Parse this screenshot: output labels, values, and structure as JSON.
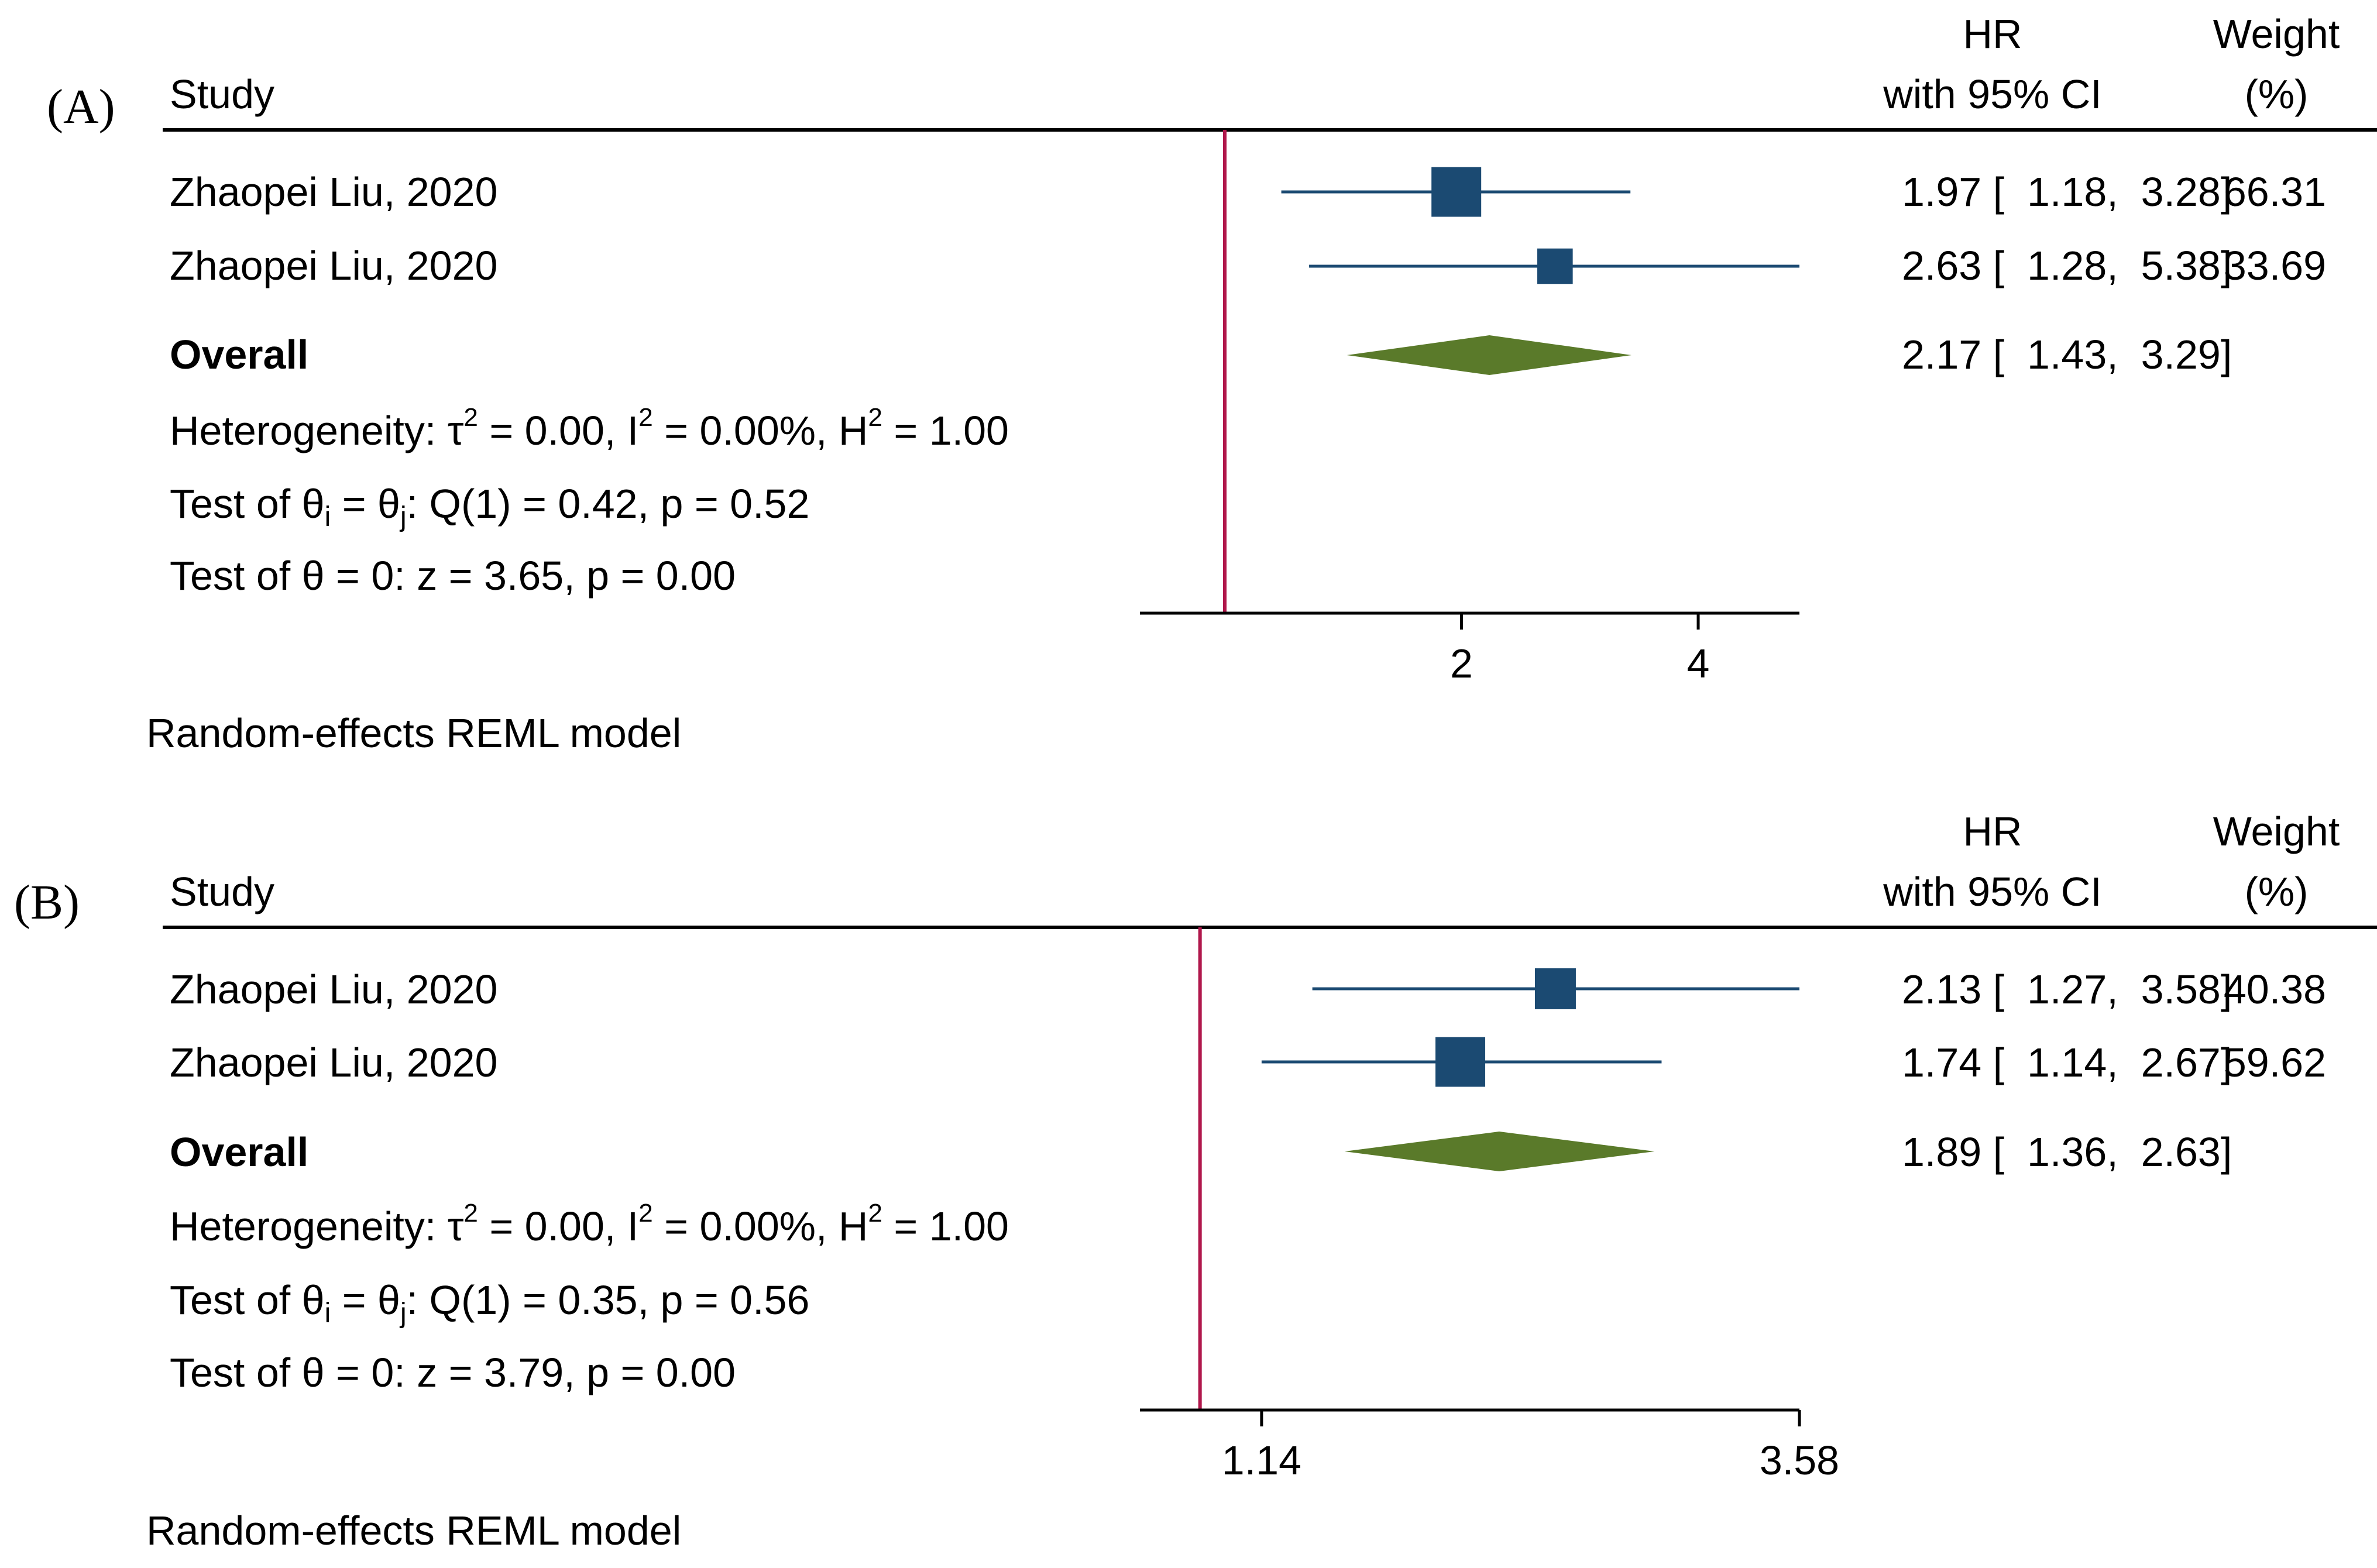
{
  "chart_data": [
    {
      "type": "forest",
      "panel_label": "(A)",
      "header": {
        "study": "Study",
        "effect_line1": "HR",
        "effect_line2": "with 95% CI",
        "weight_line1": "Weight",
        "weight_line2": "(%)"
      },
      "studies": [
        {
          "name": "Zhaopei Liu, 2020",
          "hr": 1.97,
          "ci_low": 1.18,
          "ci_high": 3.28,
          "weight": 66.31,
          "label": "1.97 [  1.18,  3.28]",
          "weight_label": "66.31"
        },
        {
          "name": "Zhaopei Liu, 2020",
          "hr": 2.63,
          "ci_low": 1.28,
          "ci_high": 5.38,
          "weight": 33.69,
          "label": "2.63 [  1.28,  5.38]",
          "weight_label": "33.69"
        }
      ],
      "overall": {
        "name": "Overall",
        "hr": 2.17,
        "ci_low": 1.43,
        "ci_high": 3.29,
        "label": "2.17 [  1.43,  3.29]"
      },
      "heterogeneity": {
        "prefix": "Heterogeneity: ",
        "tau_sym": "τ",
        "tau_sup": "2",
        "tau_rest": " = 0.00, ",
        "i_sym": "I",
        "i_sup": "2",
        "i_rest": " = 0.00%, ",
        "h_sym": "H",
        "h_sup": "2",
        "h_rest": " = 1.00"
      },
      "test_theta_ij": {
        "pre": "Test of θ",
        "sub_i": "i",
        "mid": " = θ",
        "sub_j": "j",
        "post": ": Q(1) = 0.42, p = 0.52"
      },
      "test_theta_0": "Test of θ = 0: z = 3.65, p = 0.00",
      "reference_line": 1,
      "x_range": [
        0.78,
        5.38
      ],
      "ticks": [
        {
          "value": 2,
          "label": "2"
        },
        {
          "value": 4,
          "label": "4"
        }
      ],
      "model_note": "Random-effects REML model",
      "marker_color": "#1b4a72",
      "diamond_color": "#5a7a2a",
      "reference_color": "#b0174b"
    },
    {
      "type": "forest",
      "panel_label": "(B)",
      "header": {
        "study": "Study",
        "effect_line1": "HR",
        "effect_line2": "with 95% CI",
        "weight_line1": "Weight",
        "weight_line2": "(%)"
      },
      "studies": [
        {
          "name": "Zhaopei Liu, 2020",
          "hr": 2.13,
          "ci_low": 1.27,
          "ci_high": 3.58,
          "weight": 40.38,
          "label": "2.13 [  1.27,  3.58]",
          "weight_label": "40.38"
        },
        {
          "name": "Zhaopei Liu, 2020",
          "hr": 1.74,
          "ci_low": 1.14,
          "ci_high": 2.67,
          "weight": 59.62,
          "label": "1.74 [  1.14,  2.67]",
          "weight_label": "59.62"
        }
      ],
      "overall": {
        "name": "Overall",
        "hr": 1.89,
        "ci_low": 1.36,
        "ci_high": 2.63,
        "label": "1.89 [  1.36,  2.63]"
      },
      "heterogeneity": {
        "prefix": "Heterogeneity: ",
        "tau_sym": "τ",
        "tau_sup": "2",
        "tau_rest": " = 0.00, ",
        "i_sym": "I",
        "i_sup": "2",
        "i_rest": " = 0.00%, ",
        "h_sym": "H",
        "h_sup": "2",
        "h_rest": " = 1.00"
      },
      "test_theta_ij": {
        "pre": "Test of θ",
        "sub_i": "i",
        "mid": " = θ",
        "sub_j": "j",
        "post": ": Q(1) = 0.35, p = 0.56"
      },
      "test_theta_0": "Test of θ = 0: z = 3.79, p = 0.00",
      "reference_line": 1,
      "x_range": [
        0.88,
        3.58
      ],
      "ticks": [
        {
          "value": 1.14,
          "label": "1.14"
        },
        {
          "value": 3.58,
          "label": "3.58"
        }
      ],
      "model_note": "Random-effects REML model",
      "marker_color": "#1b4a72",
      "diamond_color": "#5a7a2a",
      "reference_color": "#b0174b"
    }
  ]
}
